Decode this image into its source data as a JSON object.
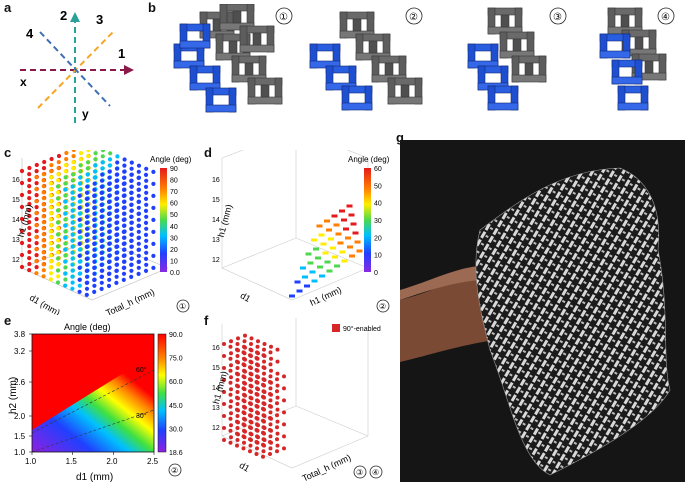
{
  "panels": {
    "a": {
      "label": "a",
      "directions": [
        "1",
        "2",
        "3",
        "4"
      ],
      "axes": {
        "x": "x",
        "y": "y"
      },
      "colors": {
        "d1": "#8b1a4a",
        "d2": "#2aa198",
        "d3": "#f5a623",
        "d4": "#3d6fb4"
      }
    },
    "b": {
      "label": "b",
      "circled": [
        "①",
        "②",
        "③",
        "④"
      ],
      "colors": {
        "active": "#1f4fd1",
        "passive": "#6a6a6a"
      }
    },
    "c": {
      "label": "c",
      "zlabel": "h1 (mm)",
      "xlabel": "d1 (mm)",
      "ylabel": "Total_h (mm)",
      "colorbar_title": "Angle (deg)",
      "colorbar_ticks": [
        "90",
        "80",
        "70",
        "60",
        "50",
        "40",
        "30",
        "20",
        "10",
        "0.0"
      ],
      "zticks": [
        "16",
        "15",
        "14",
        "13",
        "12"
      ],
      "circled": "①"
    },
    "d": {
      "label": "d",
      "zlabel": "h1 (mm)",
      "xlabel": "d1",
      "ylabel": "h1 (mm)",
      "colorbar_title": "Angle (deg)",
      "colorbar_ticks": [
        "60",
        "50",
        "40",
        "30",
        "20",
        "10",
        "0"
      ],
      "zticks": [
        "16",
        "15",
        "14",
        "13",
        "12"
      ],
      "circled": "②"
    },
    "e": {
      "label": "e",
      "title": "Angle (deg)",
      "xlabel": "d1 (mm)",
      "ylabel": "h2 (mm)",
      "xticks": [
        "1.0",
        "1.5",
        "2.0",
        "2.5"
      ],
      "yticks": [
        "3.8",
        "3.2",
        "2.6",
        "2.0",
        "1.5",
        "1.0"
      ],
      "contours": [
        "60°",
        "30°"
      ],
      "colorbar_ticks": [
        "90.0",
        "75.0",
        "60.0",
        "45.0",
        "30.0",
        "18.6"
      ],
      "circled": "②"
    },
    "f": {
      "label": "f",
      "legend": "90°-enabled",
      "zlabel": "h1 (mm)",
      "xlabel": "d1",
      "ylabel": "Total_h (mm)",
      "zticks": [
        "16",
        "15",
        "14",
        "13",
        "12"
      ],
      "circled": [
        "③",
        "④"
      ]
    },
    "g": {
      "label": "g"
    }
  },
  "chart_data": [
    {
      "type": "heatmap",
      "title": "Angle (deg)",
      "xlabel": "d1 (mm)",
      "ylabel": "h2 (mm)",
      "xlim": [
        1.0,
        2.5
      ],
      "ylim": [
        1.0,
        3.8
      ],
      "zlim": [
        18.6,
        90.0
      ],
      "contours": [
        {
          "level": 60,
          "label": "60°"
        },
        {
          "level": 30,
          "label": "30°"
        }
      ]
    }
  ]
}
